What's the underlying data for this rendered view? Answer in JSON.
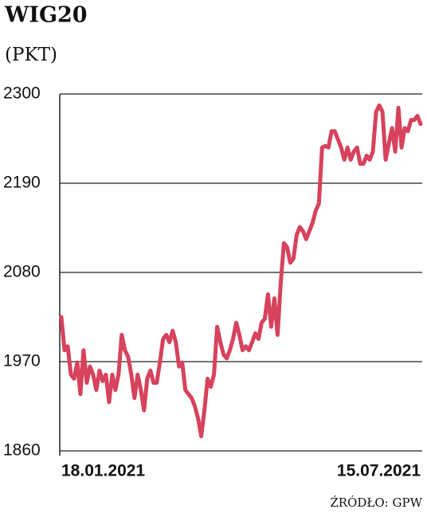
{
  "chart_data": {
    "type": "line",
    "title": "WIG20",
    "subtitle": "(PKT)",
    "source": "ŹRÓDŁO: GPW",
    "categories": [
      "18.01.2021",
      null,
      null,
      null,
      null,
      null,
      null,
      null,
      null,
      null,
      null,
      null,
      null,
      null,
      null,
      null,
      null,
      null,
      null,
      null,
      null,
      null,
      null,
      null,
      null,
      null,
      null,
      null,
      null,
      null,
      null,
      null,
      null,
      null,
      null,
      null,
      null,
      null,
      null,
      null,
      null,
      null,
      null,
      null,
      null,
      null,
      null,
      null,
      null,
      null,
      null,
      null,
      null,
      null,
      null,
      null,
      null,
      null,
      null,
      null,
      null,
      null,
      null,
      null,
      null,
      null,
      null,
      null,
      null,
      null,
      null,
      null,
      null,
      null,
      null,
      null,
      null,
      null,
      null,
      null,
      null,
      null,
      null,
      null,
      null,
      null,
      null,
      null,
      null,
      null,
      null,
      null,
      null,
      null,
      null,
      null,
      null,
      null,
      null,
      null,
      null,
      null,
      null,
      null,
      null,
      null,
      null,
      null,
      null,
      null,
      null,
      null,
      null,
      "15.07.2021"
    ],
    "series": [
      {
        "name": "WIG20",
        "color": "#d7425c",
        "values": [
          2025,
          1984,
          1989,
          1954,
          1949,
          1969,
          1930,
          1984,
          1944,
          1964,
          1954,
          1935,
          1959,
          1946,
          1954,
          1920,
          1954,
          1935,
          1954,
          2003,
          1984,
          1976,
          1954,
          1925,
          1954,
          1935,
          1910,
          1949,
          1959,
          1944,
          1944,
          1969,
          1998,
          2003,
          1994,
          2008,
          1994,
          1964,
          1969,
          1935,
          1930,
          1925,
          1915,
          1900,
          1878,
          1910,
          1949,
          1939,
          1954,
          2013,
          1994,
          1979,
          1974,
          1984,
          1998,
          2018,
          2003,
          1984,
          1989,
          1984,
          1994,
          2005,
          1998,
          2018,
          2023,
          2053,
          2013,
          2048,
          2003,
          2067,
          2116,
          2111,
          2092,
          2097,
          2126,
          2136,
          2131,
          2121,
          2131,
          2141,
          2156,
          2165,
          2234,
          2236,
          2234,
          2254,
          2254,
          2244,
          2234,
          2219,
          2234,
          2219,
          2229,
          2234,
          2214,
          2214,
          2224,
          2219,
          2229,
          2278,
          2286,
          2278,
          2219,
          2239,
          2258,
          2229,
          2283,
          2234,
          2258,
          2254,
          2268,
          2268,
          2273,
          2263
        ]
      }
    ],
    "ylim": [
      1860,
      2300
    ],
    "yticks": [
      1860,
      1970,
      2080,
      2190,
      2300
    ],
    "grid": true
  }
}
